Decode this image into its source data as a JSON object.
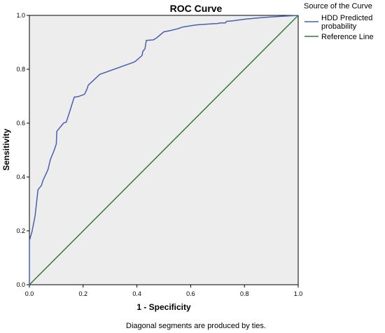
{
  "chart_data": {
    "type": "line",
    "title": "ROC Curve",
    "xlabel": "1 - Specificity",
    "ylabel": "Sensitivity",
    "xlim": [
      0.0,
      1.0
    ],
    "ylim": [
      0.0,
      1.0
    ],
    "x_ticks": [
      "0.0",
      "0.2",
      "0.4",
      "0.6",
      "0.8",
      "1.0"
    ],
    "y_ticks": [
      "0.0",
      "0.2",
      "0.4",
      "0.6",
      "0.8",
      "1.0"
    ],
    "grid": false,
    "plot_background": "#ededed",
    "legend": {
      "title": "Source of the Curve",
      "placement": "right",
      "entries": [
        "HDD Predicted",
        "probability",
        "Reference Line"
      ]
    },
    "footnote": "Diagonal segments are produced by ties.",
    "series": [
      {
        "name": "HDD Predicted probability",
        "color": "#4a5fb0",
        "x": [
          0.0,
          0.0,
          0.003,
          0.01,
          0.021,
          0.032,
          0.034,
          0.045,
          0.05,
          0.069,
          0.078,
          0.091,
          0.1,
          0.102,
          0.128,
          0.137,
          0.15,
          0.167,
          0.18,
          0.205,
          0.214,
          0.219,
          0.232,
          0.262,
          0.388,
          0.395,
          0.419,
          0.422,
          0.43,
          0.435,
          0.436,
          0.461,
          0.474,
          0.5,
          0.525,
          0.55,
          0.571,
          0.597,
          0.623,
          0.652,
          0.685,
          0.7,
          0.71,
          0.729,
          0.734,
          0.757,
          0.803,
          0.866,
          0.93,
          1.0
        ],
        "y": [
          0.0,
          0.162,
          0.175,
          0.198,
          0.255,
          0.353,
          0.355,
          0.369,
          0.386,
          0.427,
          0.465,
          0.496,
          0.522,
          0.57,
          0.601,
          0.603,
          0.643,
          0.697,
          0.698,
          0.707,
          0.726,
          0.741,
          0.753,
          0.781,
          0.826,
          0.83,
          0.851,
          0.866,
          0.876,
          0.907,
          0.907,
          0.909,
          0.917,
          0.939,
          0.944,
          0.95,
          0.957,
          0.961,
          0.965,
          0.967,
          0.969,
          0.97,
          0.972,
          0.972,
          0.978,
          0.98,
          0.986,
          0.992,
          0.996,
          1.0
        ]
      },
      {
        "name": "Reference Line",
        "color": "#2e7d32",
        "x": [
          0.0,
          1.0
        ],
        "y": [
          0.0,
          1.0
        ]
      }
    ]
  }
}
